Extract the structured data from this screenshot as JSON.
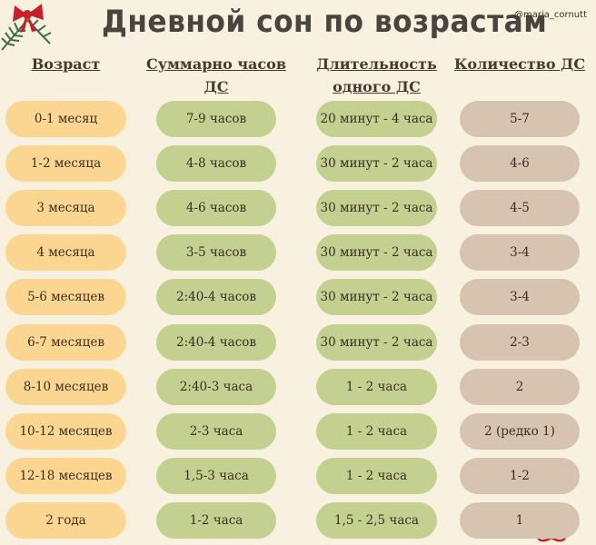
{
  "title": "Дневной сон по возрастам",
  "handle": "@maria_cornutt",
  "headers": {
    "age": "Возраст",
    "total_line1": "Суммарно часов",
    "total_line2": "ДС",
    "duration_line1": "Длительность",
    "duration_line2": "одного ДС",
    "count": "Количество ДС"
  },
  "rows": [
    {
      "age": "0-1 месяц",
      "total": "7-9 часов",
      "duration": "20 минут - 4 часа",
      "count": "5-7"
    },
    {
      "age": "1-2 месяца",
      "total": "4-8 часов",
      "duration": "30 минут - 2 часа",
      "count": "4-6"
    },
    {
      "age": "3 месяца",
      "total": "4-6 часов",
      "duration": "30 минут - 2 часа",
      "count": "4-5"
    },
    {
      "age": "4 месяца",
      "total": "3-5 часов",
      "duration": "30 минут - 2 часа",
      "count": "3-4"
    },
    {
      "age": "5-6 месяцев",
      "total": "2:40-4 часов",
      "duration": "30 минут - 2 часа",
      "count": "3-4"
    },
    {
      "age": "6-7 месяцев",
      "total": "2:40-4 часов",
      "duration": "30 минут - 2 часа",
      "count": "2-3"
    },
    {
      "age": "8-10 месяцев",
      "total": "2:40-3 часа",
      "duration": "1 - 2 часа",
      "count": "2"
    },
    {
      "age": "10-12 месяцев",
      "total": "2-3 часа",
      "duration": "1 - 2 часа",
      "count": "2 (редко 1)"
    },
    {
      "age": "12-18 месяцев",
      "total": "1,5-3 часа",
      "duration": "1 - 2 часа",
      "count": "1-2"
    },
    {
      "age": "2 года",
      "total": "1-2 часа",
      "duration": "1,5 - 2,5 часа",
      "count": "1"
    }
  ],
  "colors": {
    "background": "#f8f1df",
    "age_pill": "#fbd690",
    "green_pill": "#c3d08f",
    "count_pill": "#d6c3b0",
    "bow": "#c8202a"
  },
  "icons": [
    "red-bow-icon",
    "pine-branch-icon",
    "gift-bow-icon"
  ]
}
